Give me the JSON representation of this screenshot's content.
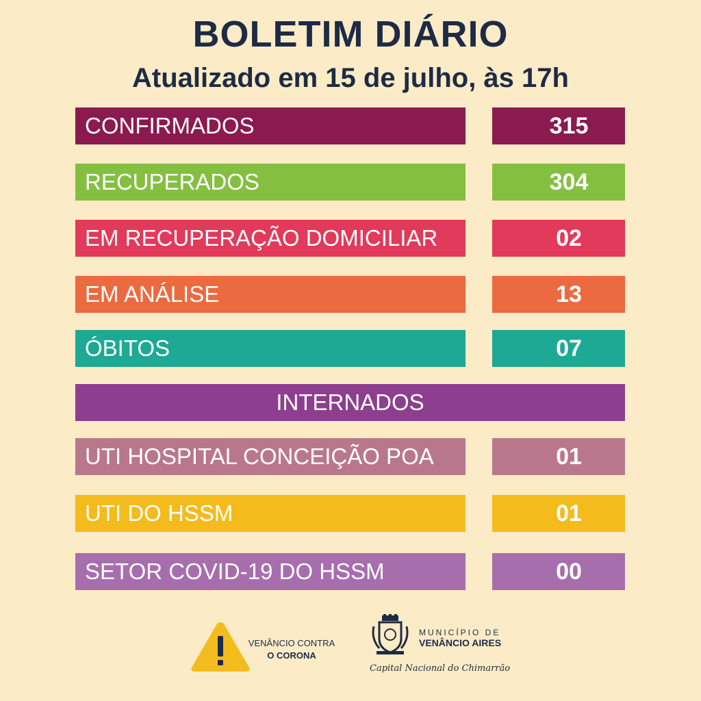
{
  "header": {
    "title": "BOLETIM DIÁRIO",
    "subtitle": "Atualizado em 15 de julho, às 17h"
  },
  "stats": [
    {
      "label": "CONFIRMADOS",
      "value": "315",
      "color": "#8a1a4f"
    },
    {
      "label": "RECUPERADOS",
      "value": "304",
      "color": "#84bf41"
    },
    {
      "label": "EM RECUPERAÇÃO DOMICILIAR",
      "value": "02",
      "color": "#e13a5a"
    },
    {
      "label": "EM ANÁLISE",
      "value": "13",
      "color": "#ec6a3f"
    },
    {
      "label": "ÓBITOS",
      "value": "07",
      "color": "#1da993"
    }
  ],
  "internados": {
    "heading": "INTERNADOS",
    "color": "#8e3e8f",
    "items": [
      {
        "label": "UTI HOSPITAL CONCEIÇÃO POA",
        "value": "01",
        "color": "#b9778e"
      },
      {
        "label": "UTI DO HSSM",
        "value": "01",
        "color": "#f4bb1c"
      },
      {
        "label": "SETOR COVID-19 DO HSSM",
        "value": "00",
        "color": "#a76eae"
      }
    ]
  },
  "footer": {
    "campaign_line1": "VENÂNCIO CONTRA",
    "campaign_line2": "O CORONA",
    "warning_icon": "warning-triangle-icon",
    "municipality_line1": "MUNICÍPIO DE",
    "municipality_line2": "VENÂNCIO AIRES",
    "crest_icon": "municipal-crest-icon",
    "tagline": "Capital Nacional do Chimarrão"
  }
}
